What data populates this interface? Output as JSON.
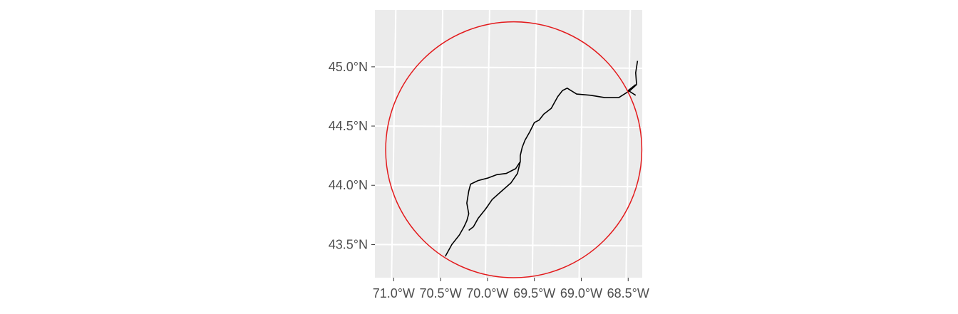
{
  "chart_data": {
    "type": "map",
    "title": "",
    "xlabel": "",
    "ylabel": "",
    "grid": true,
    "background": "#ebebeb",
    "grid_color": "#ffffff",
    "x_ticks": [
      {
        "value": -71.0,
        "label": "71.0°W"
      },
      {
        "value": -70.5,
        "label": "70.5°W"
      },
      {
        "value": -70.0,
        "label": "70.0°W"
      },
      {
        "value": -69.5,
        "label": "69.5°W"
      },
      {
        "value": -69.0,
        "label": "69.0°W"
      },
      {
        "value": -68.5,
        "label": "68.5°W"
      }
    ],
    "y_ticks": [
      {
        "value": 43.5,
        "label": "43.5°N"
      },
      {
        "value": 44.0,
        "label": "44.0°N"
      },
      {
        "value": 44.5,
        "label": "44.5°N"
      },
      {
        "value": 45.0,
        "label": "45.0°N"
      }
    ],
    "xlim": [
      -71.2,
      -68.35
    ],
    "ylim": [
      43.22,
      45.48
    ],
    "circle": {
      "color": "#e31a1c",
      "center": [
        -69.72,
        44.3
      ],
      "radius_deg_lat": 1.08
    },
    "route": {
      "color": "#000000",
      "lines": [
        [
          [
            -68.4,
            45.05
          ],
          [
            -68.42,
            44.95
          ],
          [
            -68.41,
            44.85
          ],
          [
            -68.48,
            44.8
          ],
          [
            -68.6,
            44.74
          ],
          [
            -68.75,
            44.74
          ],
          [
            -68.9,
            44.76
          ],
          [
            -69.05,
            44.77
          ],
          [
            -69.15,
            44.82
          ],
          [
            -69.2,
            44.8
          ],
          [
            -69.25,
            44.75
          ],
          [
            -69.32,
            44.65
          ],
          [
            -69.4,
            44.6
          ],
          [
            -69.45,
            44.55
          ],
          [
            -69.5,
            44.53
          ],
          [
            -69.55,
            44.45
          ],
          [
            -69.6,
            44.38
          ],
          [
            -69.63,
            44.32
          ],
          [
            -69.65,
            44.25
          ],
          [
            -69.65,
            44.2
          ],
          [
            -69.7,
            44.14
          ],
          [
            -69.8,
            44.1
          ],
          [
            -69.9,
            44.09
          ],
          [
            -70.0,
            44.06
          ],
          [
            -70.1,
            44.04
          ],
          [
            -70.18,
            44.01
          ],
          [
            -70.2,
            43.95
          ],
          [
            -70.22,
            43.85
          ],
          [
            -70.2,
            43.76
          ],
          [
            -70.22,
            43.7
          ],
          [
            -70.25,
            43.65
          ],
          [
            -70.3,
            43.58
          ],
          [
            -70.38,
            43.5
          ],
          [
            -70.45,
            43.4
          ]
        ],
        [
          [
            -69.65,
            44.2
          ],
          [
            -69.68,
            44.1
          ],
          [
            -69.75,
            44.02
          ],
          [
            -69.85,
            43.95
          ],
          [
            -69.95,
            43.88
          ],
          [
            -70.02,
            43.8
          ],
          [
            -70.1,
            43.72
          ],
          [
            -70.15,
            43.65
          ],
          [
            -70.2,
            43.62
          ]
        ],
        [
          [
            -68.42,
            44.85
          ],
          [
            -68.5,
            44.8
          ],
          [
            -68.42,
            44.76
          ]
        ]
      ]
    }
  }
}
